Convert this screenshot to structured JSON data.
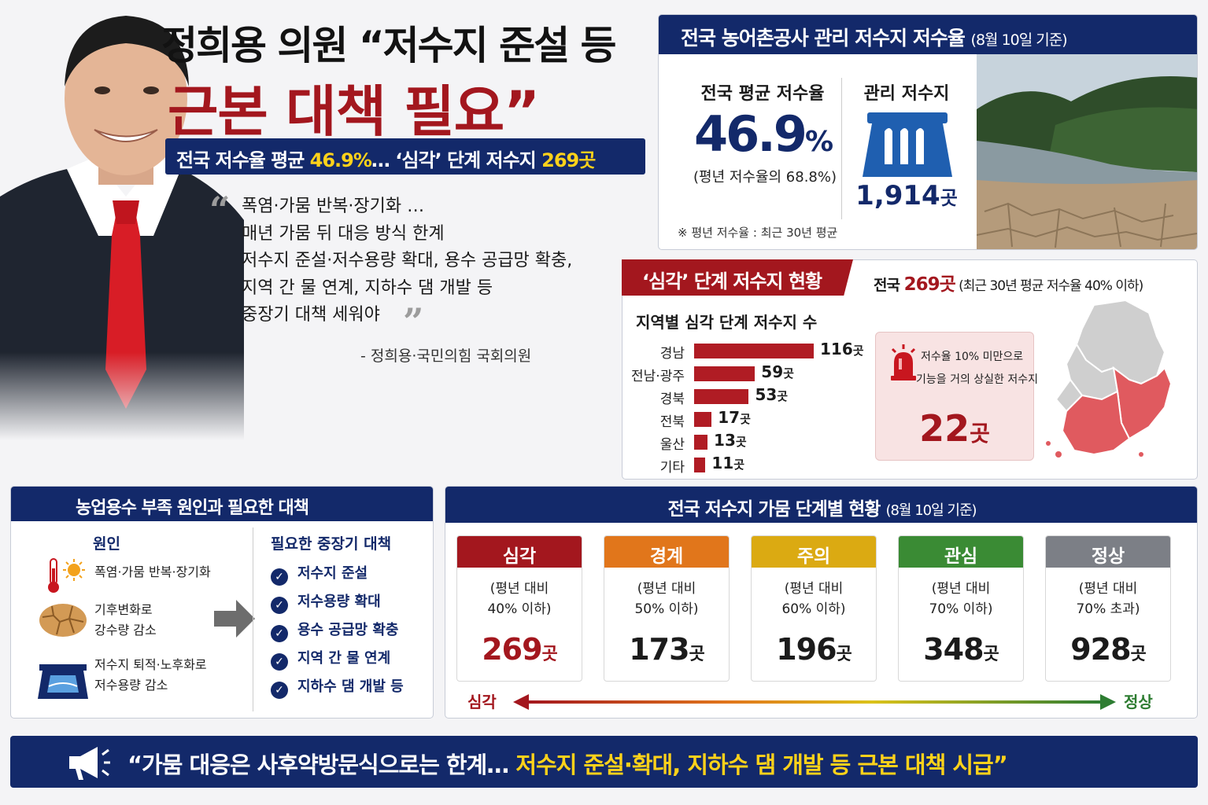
{
  "headline": {
    "line1": "정희용 의원 “저수지 준설 등",
    "line2": "근본 대책 필요”"
  },
  "subheadline": {
    "part1": "전국 저수율 평균 ",
    "avg": "46.9%",
    "part2": "… ‘심각’ 단계 저수지 ",
    "count": "269곳"
  },
  "quote": {
    "lines": [
      "폭염·가뭄 반복·장기화 …",
      "매년 가뭄 뒤 대응 방식 한계",
      "저수지 준설·저수용량 확대, 용수 공급망 확충,",
      "지역 간 물 연계, 지하수 댐 개발 등",
      "중장기 대책 세워야"
    ],
    "author": "- 정희용·국민의힘 국회의원"
  },
  "storage": {
    "title": "전국 농어촌공사 관리 저수지 저수율",
    "date": "(8월 10일 기준)",
    "avg_label": "전국 평균 저수율",
    "avg_number": "46.9",
    "avg_unit": "%",
    "avg_note": "(평년 저수율의 68.8%)",
    "managed_label": "관리 저수지",
    "managed_number": "1,914",
    "managed_unit": "곳",
    "footnote": "※ 평년 저수율 : 최근 30년 평균"
  },
  "severe": {
    "tab": "‘심각’ 단계 저수지 현황",
    "summary_prefix": "전국 ",
    "summary_count": "269곳",
    "summary_note": " (최근 30년 평균 저수율 40% 이하)",
    "bars_title": "지역별 심각 단계 저수지 수",
    "unit": "곳",
    "regions": [
      {
        "name": "경남",
        "value": 116
      },
      {
        "name": "전남·광주",
        "value": 59
      },
      {
        "name": "경북",
        "value": 53
      },
      {
        "name": "전북",
        "value": 17
      },
      {
        "name": "울산",
        "value": 13
      },
      {
        "name": "기타",
        "value": 11
      }
    ],
    "loss_line1": "저수율 10% 미만으로",
    "loss_line2": "기능을 거의 상실한 저수지",
    "loss_number": "22",
    "loss_unit": "곳"
  },
  "causes": {
    "title": "농업용수 부족 원인과 필요한 대책",
    "cause_title": "원인",
    "items": [
      {
        "icon": "thermometer-sun-icon",
        "lines": [
          "폭염·가뭄 반복·장기화"
        ]
      },
      {
        "icon": "cracked-earth-icon",
        "lines": [
          "기후변화로",
          "강수량 감소"
        ]
      },
      {
        "icon": "reservoir-icon",
        "lines": [
          "저수지 퇴적·노후화로",
          "저수용량 감소"
        ]
      }
    ],
    "measure_title": "필요한 중장기 대책",
    "measures": [
      "저수지 준설",
      "저수용량 확대",
      "용수 공급망 확충",
      "지역 간 물 연계",
      "지하수 댐 개발 등"
    ]
  },
  "stages": {
    "title": "전국 저수지 가뭄 단계별 현황",
    "date": "(8월 10일 기준)",
    "unit": "곳",
    "items": [
      {
        "name": "심각",
        "desc1": "(평년 대비",
        "desc2": "40% 이하)",
        "count": "269",
        "color": "#a3171e",
        "text_color": "#a3171e"
      },
      {
        "name": "경계",
        "desc1": "(평년 대비",
        "desc2": "50% 이하)",
        "count": "173",
        "color": "#e1761b",
        "text_color": "#1b1b1b"
      },
      {
        "name": "주의",
        "desc1": "(평년 대비",
        "desc2": "60% 이하)",
        "count": "196",
        "color": "#dbaa12",
        "text_color": "#1b1b1b"
      },
      {
        "name": "관심",
        "desc1": "(평년 대비",
        "desc2": "70% 이하)",
        "count": "348",
        "color": "#3a8b34",
        "text_color": "#1b1b1b"
      },
      {
        "name": "정상",
        "desc1": "(평년 대비",
        "desc2": "70% 초과)",
        "count": "928",
        "color": "#7c7f86",
        "text_color": "#1b1b1b"
      }
    ],
    "scale_left": "심각",
    "scale_right": "정상"
  },
  "banner": {
    "part1": "“가뭄 대응은 사후약방문식으로는 한계… ",
    "part2": "저수지 준설·확대, 지하수 댐 개발 등 근본 대책 시급”"
  },
  "colors": {
    "navy": "#13296a",
    "red": "#a3171e",
    "yellow": "#ffd21a",
    "green": "#2e7d32"
  }
}
